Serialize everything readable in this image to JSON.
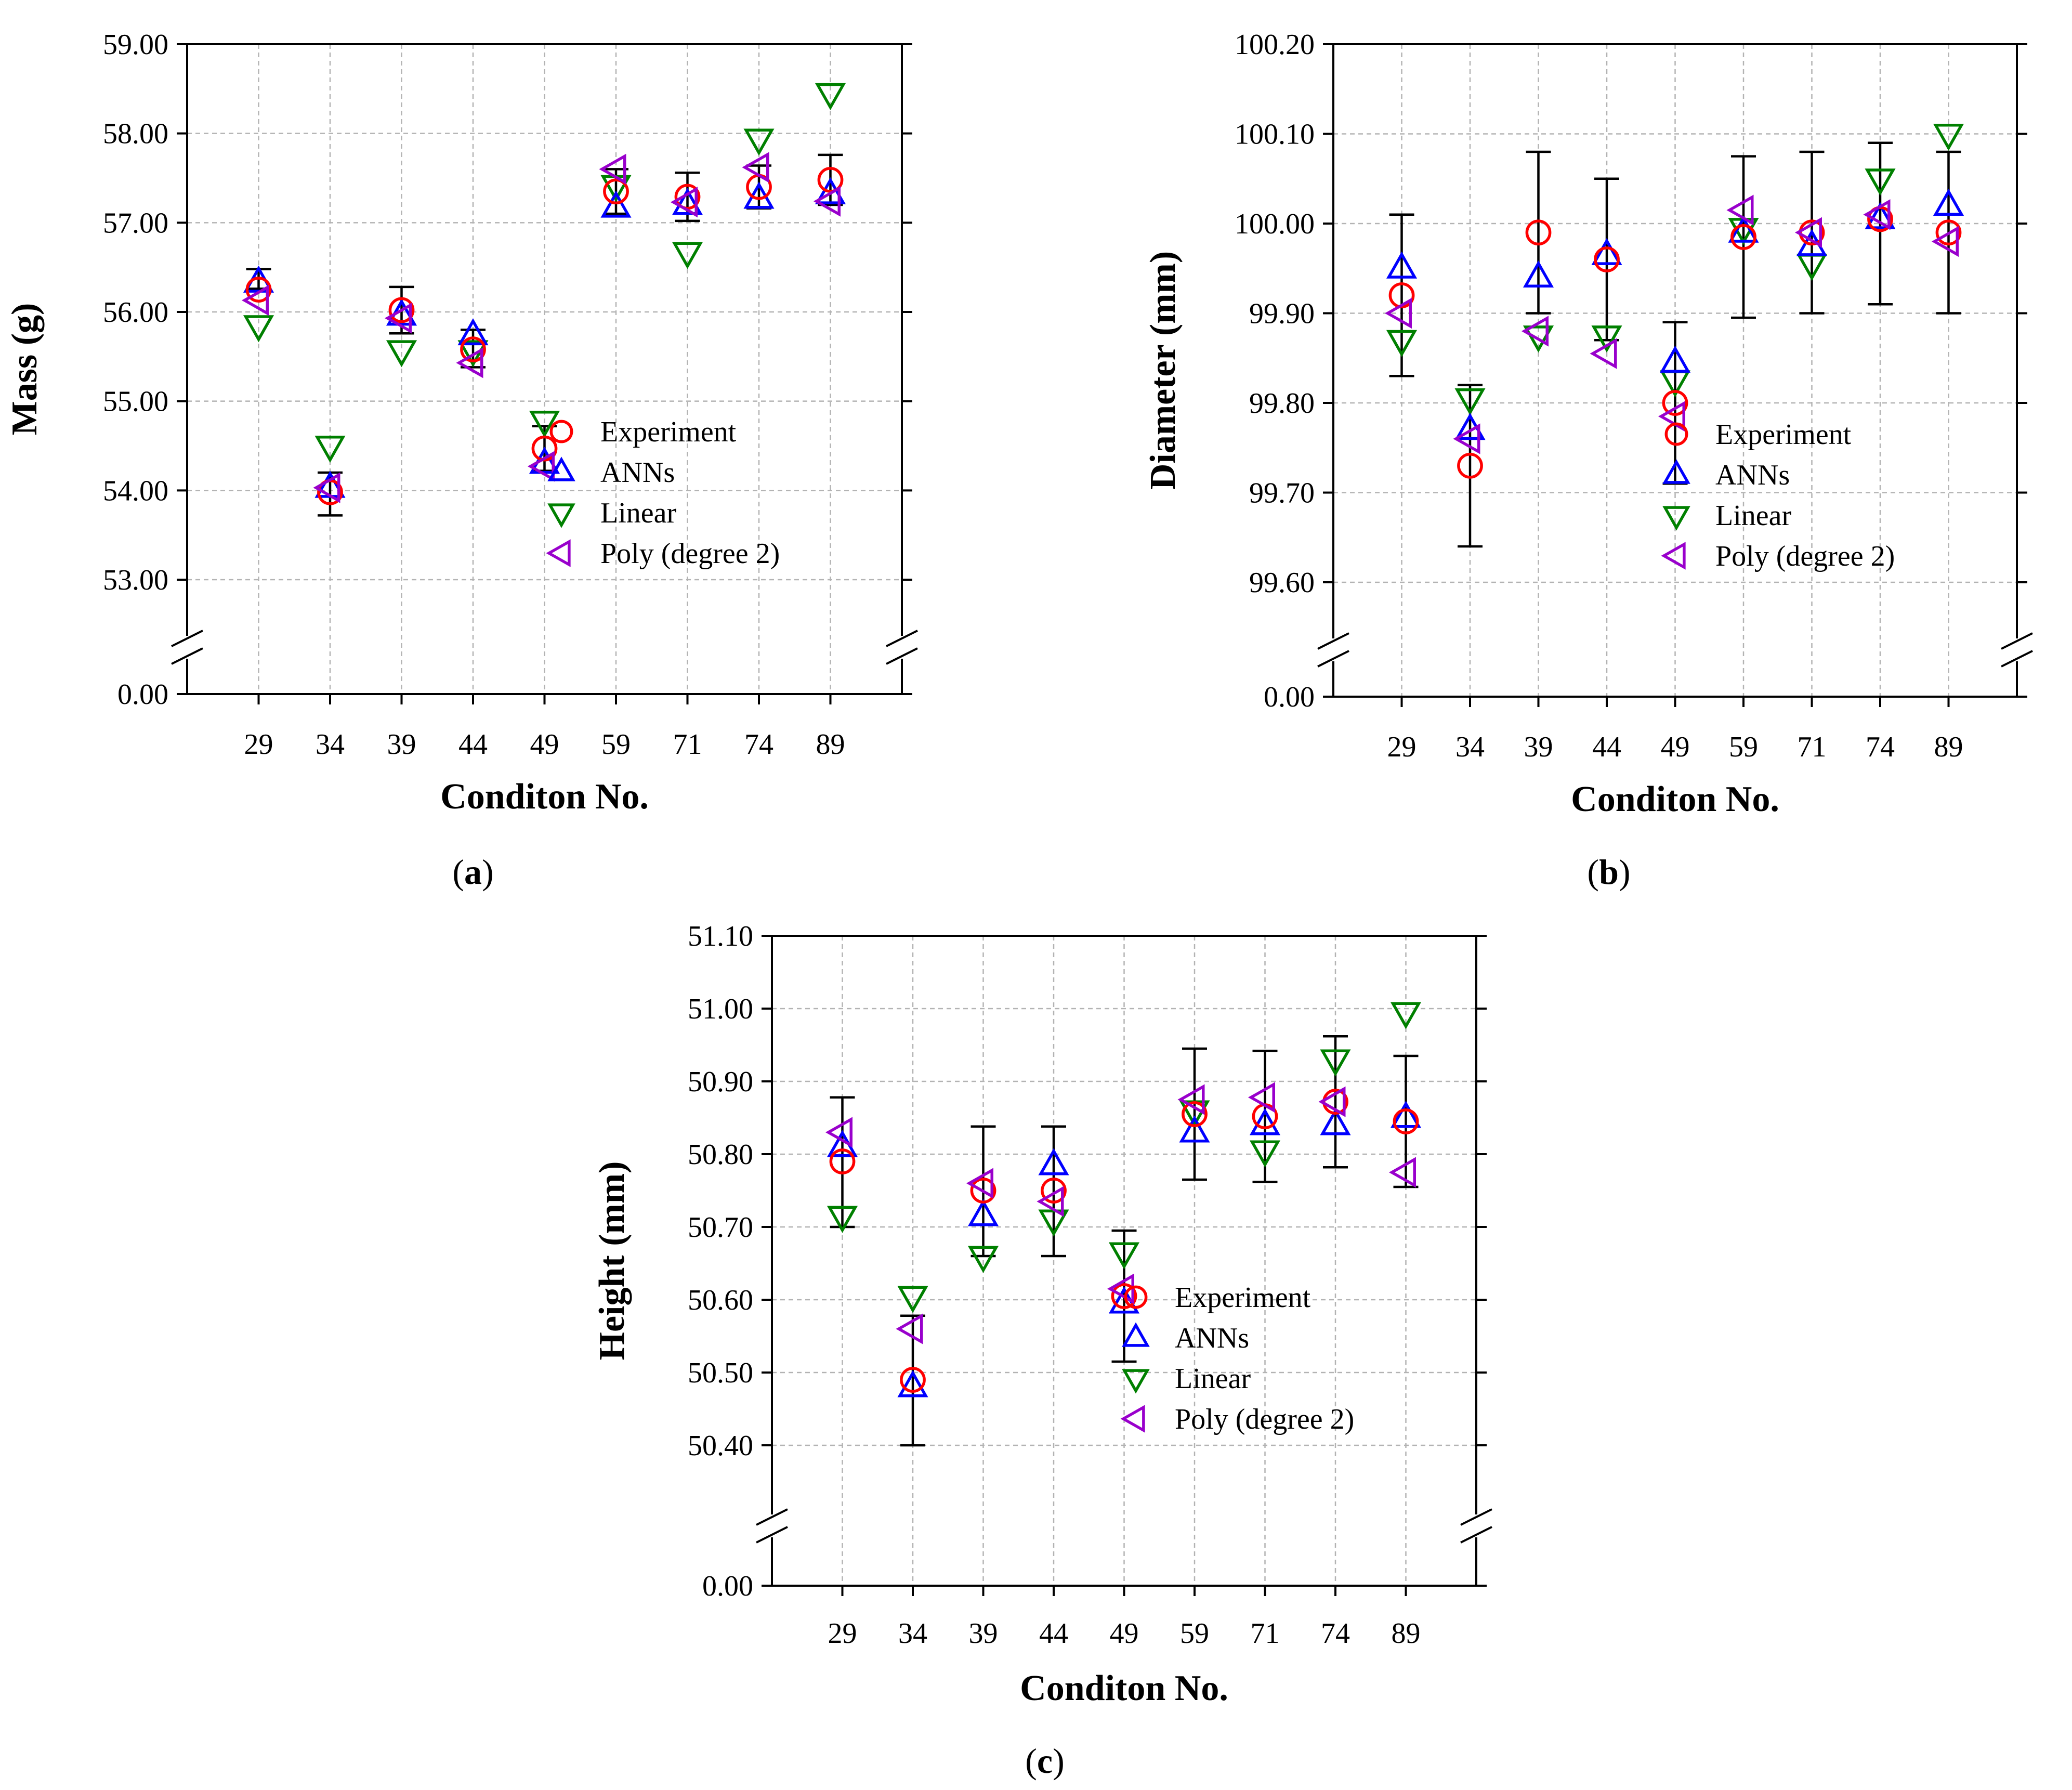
{
  "figure": {
    "panels": [
      {
        "caption_pre": "(",
        "caption_letter": "a",
        "caption_post": ")"
      },
      {
        "caption_pre": "(",
        "caption_letter": "b",
        "caption_post": ")"
      },
      {
        "caption_pre": "(",
        "caption_letter": "c",
        "caption_post": ")"
      }
    ],
    "series_colors": {
      "Experiment": "#ff0000",
      "ANNs": "#0000ff",
      "Linear": "#008000",
      "Poly (degree 2)": "#9900cc"
    },
    "series_markers": {
      "Experiment": "circle",
      "ANNs": "triangle-up",
      "Linear": "triangle-down",
      "Poly (degree 2)": "triangle-left"
    }
  },
  "chart_data": [
    {
      "type": "scatter",
      "title": "",
      "xlabel": "Conditon No.",
      "ylabel": "Mass (g)",
      "categories": [
        "29",
        "34",
        "39",
        "44",
        "49",
        "59",
        "71",
        "74",
        "89"
      ],
      "ylim": [
        53.0,
        59.0
      ],
      "axis_break": true,
      "y_ticks": [
        "53.00",
        "54.00",
        "55.00",
        "56.00",
        "57.00",
        "58.00",
        "59.00"
      ],
      "y_zero_label": "0.00",
      "grid": true,
      "legend_position": "bottom-right",
      "error_bars": {
        "series": "Experiment",
        "low": [
          56.26,
          53.72,
          55.76,
          55.38,
          54.22,
          57.1,
          57.02,
          57.16,
          57.2
        ],
        "high": [
          56.48,
          54.2,
          56.28,
          55.8,
          54.72,
          57.6,
          57.56,
          57.64,
          57.76
        ]
      },
      "series": [
        {
          "name": "Experiment",
          "values": [
            56.25,
            53.98,
            56.02,
            55.58,
            54.47,
            57.35,
            57.29,
            57.4,
            57.48
          ]
        },
        {
          "name": "ANNs",
          "values": [
            56.33,
            54.03,
            55.96,
            55.74,
            54.3,
            57.17,
            57.2,
            57.27,
            57.32
          ]
        },
        {
          "name": "Linear",
          "values": [
            55.85,
            54.5,
            55.57,
            55.57,
            54.78,
            57.42,
            56.67,
            57.94,
            58.45
          ]
        },
        {
          "name": "Poly (degree 2)",
          "values": [
            56.13,
            54.03,
            55.93,
            55.43,
            54.27,
            57.6,
            57.23,
            57.62,
            57.24
          ]
        }
      ]
    },
    {
      "type": "scatter",
      "title": "",
      "xlabel": "Conditon No.",
      "ylabel": "Diameter (mm)",
      "categories": [
        "29",
        "34",
        "39",
        "44",
        "49",
        "59",
        "71",
        "74",
        "89"
      ],
      "ylim": [
        99.6,
        100.2
      ],
      "axis_break": true,
      "y_ticks": [
        "99.60",
        "99.70",
        "99.80",
        "99.90",
        "100.00",
        "100.10",
        "100.20"
      ],
      "y_zero_label": "0.00",
      "grid": true,
      "legend_position": "bottom-right",
      "error_bars": {
        "series": "Experiment",
        "low": [
          99.83,
          99.64,
          99.9,
          99.87,
          99.71,
          99.895,
          99.9,
          99.91,
          99.9
        ],
        "high": [
          100.01,
          99.82,
          100.08,
          100.05,
          99.89,
          100.075,
          100.08,
          100.09,
          100.08
        ]
      },
      "series": [
        {
          "name": "Experiment",
          "values": [
            99.92,
            99.73,
            99.99,
            99.96,
            99.8,
            99.985,
            99.99,
            100.005,
            99.99
          ]
        },
        {
          "name": "ANNs",
          "values": [
            99.95,
            99.77,
            99.94,
            99.965,
            99.845,
            99.99,
            99.975,
            100.005,
            100.02
          ]
        },
        {
          "name": "Linear",
          "values": [
            99.87,
            99.805,
            99.875,
            99.875,
            99.825,
            99.995,
            99.955,
            100.05,
            100.1
          ]
        },
        {
          "name": "Poly (degree 2)",
          "values": [
            99.9,
            99.76,
            99.88,
            99.855,
            99.785,
            100.015,
            99.99,
            100.01,
            99.98
          ]
        }
      ]
    },
    {
      "type": "scatter",
      "title": "",
      "xlabel": "Conditon No.",
      "ylabel": "Height (mm)",
      "categories": [
        "29",
        "34",
        "39",
        "44",
        "49",
        "59",
        "71",
        "74",
        "89"
      ],
      "ylim": [
        50.4,
        51.1
      ],
      "axis_break": true,
      "y_ticks": [
        "50.40",
        "50.50",
        "50.60",
        "50.70",
        "50.80",
        "50.90",
        "51.00",
        "51.10"
      ],
      "y_zero_label": "0.00",
      "grid": true,
      "legend_position": "bottom-right",
      "error_bars": {
        "series": "Experiment",
        "low": [
          50.7,
          50.4,
          50.66,
          50.66,
          50.515,
          50.765,
          50.762,
          50.782,
          50.755
        ],
        "high": [
          50.878,
          50.578,
          50.838,
          50.838,
          50.695,
          50.945,
          50.942,
          50.962,
          50.935
        ]
      },
      "series": [
        {
          "name": "Experiment",
          "values": [
            50.79,
            50.49,
            50.75,
            50.75,
            50.605,
            50.855,
            50.852,
            50.872,
            50.845
          ]
        },
        {
          "name": "ANNs",
          "values": [
            50.81,
            50.48,
            50.715,
            50.785,
            50.595,
            50.83,
            50.84,
            50.84,
            50.85
          ]
        },
        {
          "name": "Linear",
          "values": [
            50.715,
            50.605,
            50.66,
            50.71,
            50.665,
            50.86,
            50.805,
            50.93,
            50.995
          ]
        },
        {
          "name": "Poly (degree 2)",
          "values": [
            50.83,
            50.56,
            50.76,
            50.735,
            50.615,
            50.875,
            50.878,
            50.872,
            50.775
          ]
        }
      ]
    }
  ]
}
